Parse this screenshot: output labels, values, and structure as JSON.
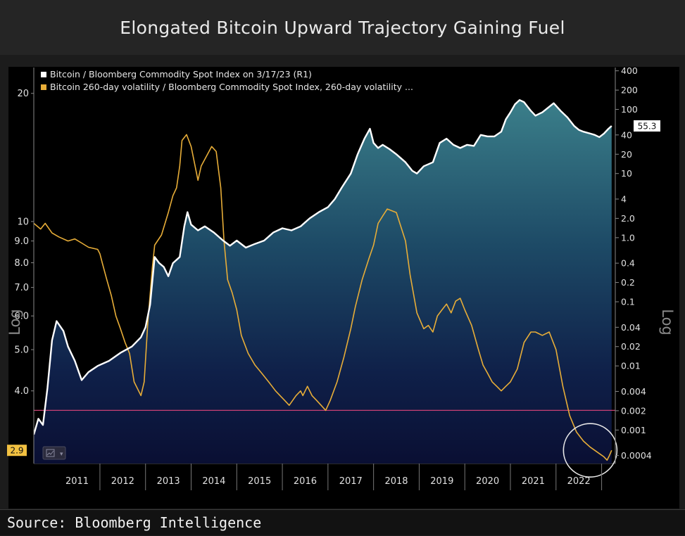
{
  "title": "Elongated Bitcoin Upward Trajectory Gaining Fuel",
  "source": "Source: Bloomberg Intelligence",
  "chart_data": {
    "type": "line",
    "title": "Elongated Bitcoin Upward Trajectory Gaining Fuel",
    "left_axis": {
      "label": "Log",
      "scale": "log",
      "ylim": [
        2.7,
        23
      ],
      "ticks": [
        {
          "value": 20,
          "label": "20"
        },
        {
          "value": 10,
          "label": "10"
        },
        {
          "value": 9,
          "label": "9.0"
        },
        {
          "value": 8,
          "label": "8.0"
        },
        {
          "value": 7,
          "label": "7.0"
        },
        {
          "value": 6,
          "label": "6.0"
        },
        {
          "value": 5,
          "label": "5.0"
        },
        {
          "value": 4,
          "label": "4.0"
        }
      ]
    },
    "right_axis": {
      "label": "Log",
      "scale": "log",
      "ylim": [
        0.0003,
        450
      ],
      "ticks": [
        {
          "value": 400,
          "label": "400"
        },
        {
          "value": 200,
          "label": "200"
        },
        {
          "value": 100,
          "label": "100"
        },
        {
          "value": 40,
          "label": "40"
        },
        {
          "value": 20,
          "label": "20"
        },
        {
          "value": 10,
          "label": "10"
        },
        {
          "value": 4,
          "label": "4"
        },
        {
          "value": 2,
          "label": "2.0"
        },
        {
          "value": 1,
          "label": "1.0"
        },
        {
          "value": 0.4,
          "label": "0.4"
        },
        {
          "value": 0.2,
          "label": "0.2"
        },
        {
          "value": 0.1,
          "label": "0.1"
        },
        {
          "value": 0.04,
          "label": "0.04"
        },
        {
          "value": 0.02,
          "label": "0.02"
        },
        {
          "value": 0.01,
          "label": "0.01"
        },
        {
          "value": 0.004,
          "label": "0.004"
        },
        {
          "value": 0.002,
          "label": "0.002"
        },
        {
          "value": 0.001,
          "label": "0.001"
        },
        {
          "value": 0.0004,
          "label": "0.0004"
        }
      ]
    },
    "x_axis": {
      "xlim": [
        2010.55,
        2023.3
      ],
      "tick_labels": [
        "2011",
        "2012",
        "2013",
        "2014",
        "2015",
        "2016",
        "2017",
        "2018",
        "2019",
        "2020",
        "2021",
        "2022"
      ]
    },
    "series": [
      {
        "name": "Bitcoin / Bloomberg Commodity Spot Index on 3/17/23 (R1)",
        "axis": "right",
        "color": "#ffffff",
        "area_fill": true,
        "last_value_label": "55.3",
        "x": [
          2010.55,
          2010.65,
          2010.75,
          2010.85,
          2010.95,
          2011.05,
          2011.2,
          2011.3,
          2011.45,
          2011.6,
          2011.75,
          2011.95,
          2012.2,
          2012.45,
          2012.7,
          2012.9,
          2013.0,
          2013.1,
          2013.2,
          2013.3,
          2013.4,
          2013.5,
          2013.6,
          2013.75,
          2013.85,
          2013.92,
          2014.0,
          2014.15,
          2014.3,
          2014.5,
          2014.7,
          2014.85,
          2015.0,
          2015.2,
          2015.4,
          2015.6,
          2015.8,
          2016.0,
          2016.2,
          2016.4,
          2016.6,
          2016.8,
          2017.0,
          2017.15,
          2017.3,
          2017.5,
          2017.65,
          2017.8,
          2017.92,
          2018.0,
          2018.1,
          2018.2,
          2018.35,
          2018.5,
          2018.7,
          2018.85,
          2018.95,
          2019.1,
          2019.3,
          2019.45,
          2019.6,
          2019.75,
          2019.9,
          2020.05,
          2020.2,
          2020.35,
          2020.5,
          2020.65,
          2020.8,
          2020.9,
          2021.0,
          2021.1,
          2021.2,
          2021.3,
          2021.45,
          2021.55,
          2021.7,
          2021.85,
          2021.95,
          2022.1,
          2022.25,
          2022.4,
          2022.5,
          2022.6,
          2022.75,
          2022.85,
          2022.95,
          2023.05,
          2023.15,
          2023.22
        ],
        "values": [
          0.00085,
          0.0015,
          0.0012,
          0.0045,
          0.025,
          0.05,
          0.035,
          0.02,
          0.012,
          0.006,
          0.008,
          0.01,
          0.012,
          0.016,
          0.02,
          0.028,
          0.04,
          0.09,
          0.5,
          0.4,
          0.35,
          0.25,
          0.4,
          0.5,
          1.5,
          2.5,
          1.6,
          1.3,
          1.5,
          1.2,
          0.9,
          0.75,
          0.9,
          0.7,
          0.8,
          0.9,
          1.2,
          1.4,
          1.3,
          1.5,
          2.0,
          2.5,
          3.0,
          4.0,
          6.0,
          10.0,
          20.0,
          35.0,
          50.0,
          30.0,
          25.0,
          28.0,
          24.0,
          20.0,
          15.0,
          11.0,
          10.0,
          13.0,
          15.0,
          30.0,
          35.0,
          28.0,
          25.0,
          28.0,
          27.0,
          40.0,
          38.0,
          38.0,
          45.0,
          70.0,
          90.0,
          120.0,
          140.0,
          130.0,
          95.0,
          80.0,
          90.0,
          110.0,
          125.0,
          95.0,
          75.0,
          55.0,
          48.0,
          45.0,
          42.0,
          40.0,
          37.0,
          42.0,
          50.0,
          55.3
        ]
      },
      {
        "name": "Bitcoin 260-day volatility / Bloomberg Commodity Spot Index, 260-day volatility ...",
        "axis": "left",
        "color": "#e7ad38",
        "last_value_label": "2.9",
        "x": [
          2010.55,
          2010.7,
          2010.8,
          2010.95,
          2011.1,
          2011.3,
          2011.45,
          2011.6,
          2011.75,
          2011.95,
          2012.0,
          2012.05,
          2012.15,
          2012.25,
          2012.35,
          2012.45,
          2012.55,
          2012.65,
          2012.75,
          2012.9,
          2012.97,
          2013.05,
          2013.15,
          2013.2,
          2013.35,
          2013.5,
          2013.6,
          2013.68,
          2013.75,
          2013.8,
          2013.9,
          2014.0,
          2014.15,
          2014.22,
          2014.3,
          2014.45,
          2014.55,
          2014.65,
          2014.72,
          2014.8,
          2014.9,
          2015.0,
          2015.1,
          2015.25,
          2015.4,
          2015.55,
          2015.7,
          2015.85,
          2015.95,
          2016.05,
          2016.15,
          2016.3,
          2016.4,
          2016.45,
          2016.55,
          2016.65,
          2016.75,
          2016.85,
          2016.95,
          2017.05,
          2017.2,
          2017.35,
          2017.5,
          2017.6,
          2017.75,
          2017.9,
          2018.0,
          2018.1,
          2018.2,
          2018.3,
          2018.5,
          2018.7,
          2018.8,
          2018.95,
          2019.1,
          2019.2,
          2019.3,
          2019.4,
          2019.5,
          2019.6,
          2019.7,
          2019.8,
          2019.9,
          2020.0,
          2020.15,
          2020.3,
          2020.4,
          2020.5,
          2020.6,
          2020.7,
          2020.8,
          2020.9,
          2021.0,
          2021.15,
          2021.3,
          2021.45,
          2021.55,
          2021.7,
          2021.85,
          2022.0,
          2022.15,
          2022.3,
          2022.45,
          2022.6,
          2022.75,
          2022.85,
          2022.95,
          2023.05,
          2023.12,
          2023.17,
          2023.22
        ],
        "values": [
          9.9,
          9.6,
          9.9,
          9.4,
          9.2,
          9.0,
          9.1,
          8.9,
          8.7,
          8.6,
          8.4,
          8.0,
          7.3,
          6.7,
          6.0,
          5.6,
          5.2,
          4.9,
          4.2,
          3.9,
          4.2,
          5.8,
          7.8,
          8.8,
          9.3,
          10.5,
          11.5,
          12.0,
          13.5,
          15.5,
          16.0,
          15.0,
          12.5,
          13.5,
          14.0,
          15.0,
          14.6,
          12.0,
          9.0,
          7.3,
          6.8,
          6.2,
          5.4,
          4.9,
          4.6,
          4.4,
          4.2,
          4.0,
          3.9,
          3.8,
          3.7,
          3.9,
          4.0,
          3.9,
          4.1,
          3.9,
          3.8,
          3.7,
          3.6,
          3.8,
          4.2,
          4.8,
          5.6,
          6.3,
          7.3,
          8.2,
          8.8,
          9.9,
          10.3,
          10.7,
          10.5,
          9.0,
          7.5,
          6.1,
          5.6,
          5.7,
          5.5,
          6.0,
          6.2,
          6.4,
          6.1,
          6.5,
          6.6,
          6.2,
          5.7,
          5.0,
          4.6,
          4.4,
          4.2,
          4.1,
          4.0,
          4.1,
          4.2,
          4.5,
          5.2,
          5.5,
          5.5,
          5.4,
          5.5,
          5.0,
          4.1,
          3.5,
          3.2,
          3.05,
          2.95,
          2.9,
          2.85,
          2.8,
          2.75,
          2.82,
          2.9
        ]
      }
    ],
    "threshold_line": {
      "axis": "left",
      "value": 3.6,
      "color": "#c94074"
    },
    "annotation": {
      "type": "circle",
      "description": "2022-2023 volatility low",
      "x": 2022.75,
      "axis": "left",
      "value": 2.9
    }
  }
}
